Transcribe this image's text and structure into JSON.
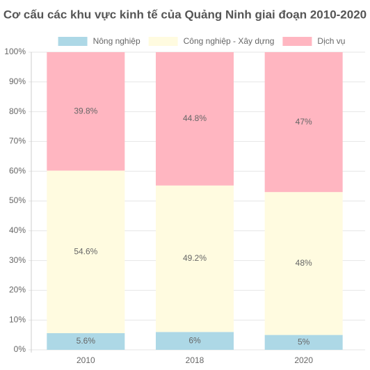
{
  "chart_data": {
    "type": "stacked-bar",
    "title": "Cơ cấu các khu vực kinh tế của Quảng Ninh giai đoạn 2010-2020",
    "categories": [
      "2010",
      "2018",
      "2020"
    ],
    "series": [
      {
        "name": "Nông nghiệp",
        "color": "#add8e6",
        "values": [
          5.6,
          6,
          5
        ],
        "value_labels": [
          "5.6%",
          "6%",
          "5%"
        ]
      },
      {
        "name": "Công nghiệp - Xây dựng",
        "color": "#fffbe0",
        "values": [
          54.6,
          49.2,
          48
        ],
        "value_labels": [
          "54.6%",
          "49.2%",
          "48%"
        ]
      },
      {
        "name": "Dịch vụ",
        "color": "#ffb6c1",
        "values": [
          39.8,
          44.8,
          47
        ],
        "value_labels": [
          "39.8%",
          "44.8%",
          "47%"
        ]
      }
    ],
    "ylim": [
      0,
      100
    ],
    "yticks": [
      {
        "value": 0,
        "label": "0%"
      },
      {
        "value": 10,
        "label": "10%"
      },
      {
        "value": 20,
        "label": "20%"
      },
      {
        "value": 30,
        "label": "30%"
      },
      {
        "value": 40,
        "label": "40%"
      },
      {
        "value": 50,
        "label": "50%"
      },
      {
        "value": 60,
        "label": "60%"
      },
      {
        "value": 70,
        "label": "70%"
      },
      {
        "value": 80,
        "label": "80%"
      },
      {
        "value": 90,
        "label": "90%"
      },
      {
        "value": 100,
        "label": "100%"
      }
    ],
    "grid": true,
    "legend": "top"
  }
}
